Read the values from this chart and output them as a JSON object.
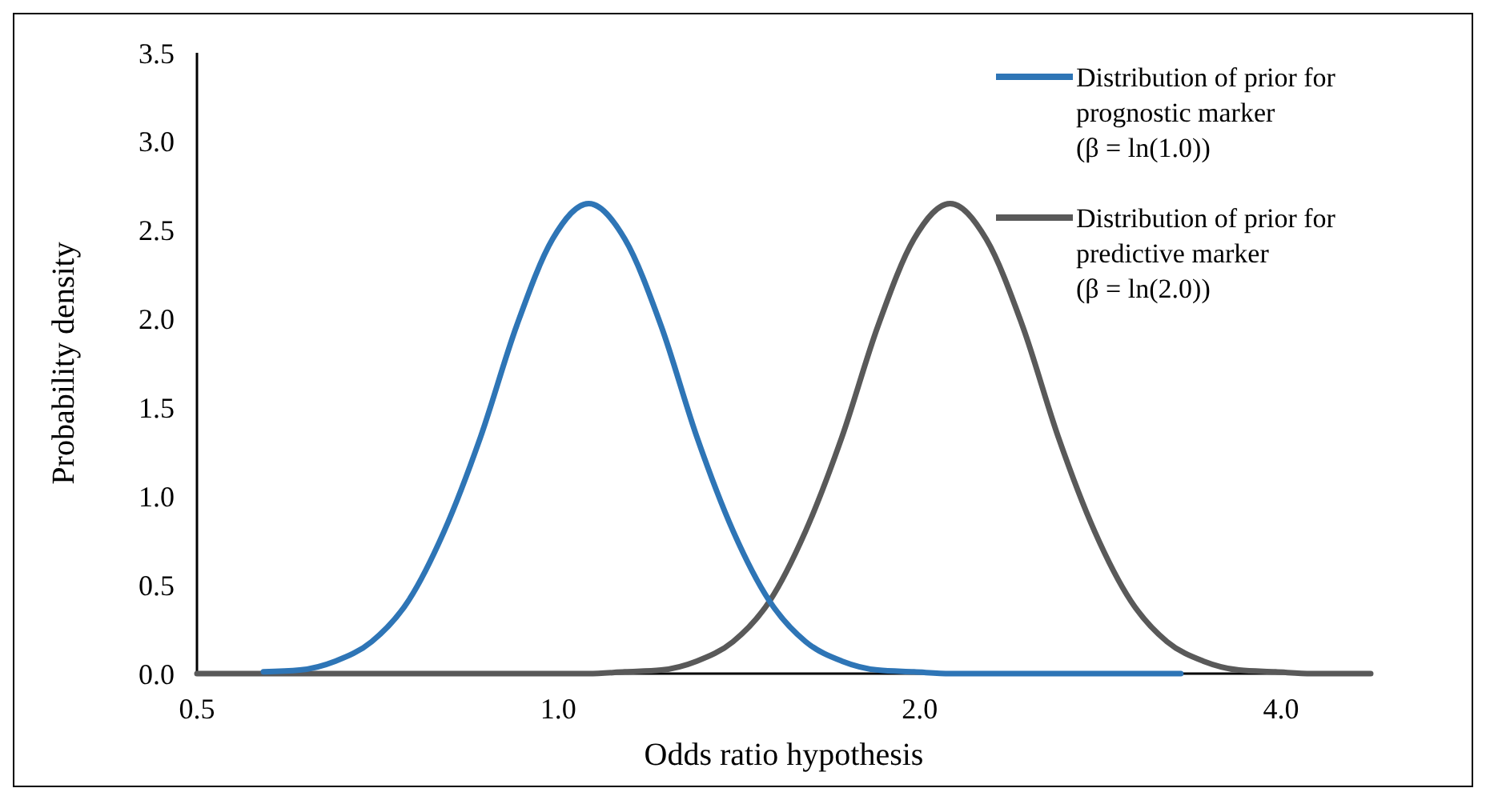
{
  "chart_data": {
    "type": "line",
    "xlabel": "Odds ratio hypothesis",
    "ylabel": "Probability density",
    "log": "x",
    "xlim": [
      0.5,
      4.75
    ],
    "xticks": [
      0.5,
      {
        "value": 1,
        "label": "1.0"
      },
      {
        "value": 2,
        "label": "2.0"
      },
      {
        "value": 4,
        "label": "4.0"
      }
    ],
    "ylim": [
      0,
      3.5
    ],
    "yticks": [
      {
        "value": 0,
        "label": "0.0"
      },
      0.5,
      {
        "value": 1,
        "label": "1.0"
      },
      1.5,
      {
        "value": 2,
        "label": "2.0"
      },
      2.5,
      {
        "value": 3,
        "label": "3.0"
      },
      3.5
    ],
    "grid": false,
    "legend": "top right",
    "marker": "none",
    "line_style": "solid",
    "series": [
      {
        "name": "Distribution of prior for prognostic marker (β = ln(1.0))",
        "color": "#2e75b6",
        "x": [
          0.568,
          0.609,
          0.652,
          0.699,
          0.75,
          0.803,
          0.861,
          0.923,
          0.989,
          1.06,
          1.136,
          1.218,
          1.305,
          1.399,
          1.499,
          1.607,
          1.723,
          1.845,
          1.978,
          2.12,
          3.3
        ],
        "values": [
          0.01,
          0.02,
          0.07,
          0.18,
          0.41,
          0.8,
          1.33,
          1.96,
          2.45,
          2.65,
          2.45,
          1.96,
          1.33,
          0.8,
          0.41,
          0.18,
          0.07,
          0.02,
          0.01,
          0,
          0
        ]
      },
      {
        "name": "Distribution of prior for predictive marker (β = ln(2.0))",
        "color": "#595959",
        "x": [
          0.5,
          1.06,
          1.136,
          1.218,
          1.304,
          1.398,
          1.5,
          1.606,
          1.722,
          1.846,
          1.978,
          2.12,
          2.272,
          2.436,
          2.61,
          2.798,
          2.998,
          3.214,
          3.446,
          3.69,
          3.956,
          4.24,
          4.75
        ],
        "values": [
          0,
          0,
          0.01,
          0.02,
          0.07,
          0.18,
          0.41,
          0.8,
          1.33,
          1.96,
          2.45,
          2.65,
          2.45,
          1.96,
          1.33,
          0.8,
          0.41,
          0.18,
          0.07,
          0.02,
          0.01,
          0,
          0
        ]
      }
    ]
  }
}
